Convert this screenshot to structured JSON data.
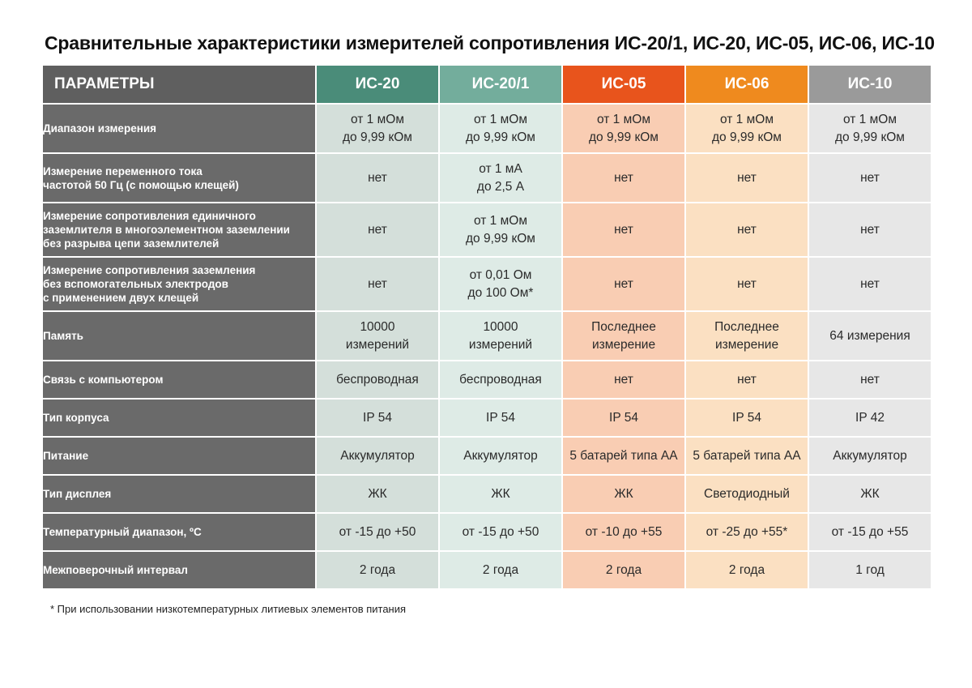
{
  "title": "Сравнительные характеристики измерителей сопротивления ИС-20/1, ИС-20, ИС-05, ИС-06, ИС-10",
  "header": {
    "param": "ПАРАМЕТРЫ",
    "columns": [
      {
        "label": "ИС-20",
        "header_color": "#4a8c79",
        "cell_color": "#d4dfda"
      },
      {
        "label": "ИС-20/1",
        "header_color": "#73ad9c",
        "cell_color": "#deebe6"
      },
      {
        "label": "ИС-05",
        "header_color": "#e8541c",
        "cell_color": "#f9cdb3"
      },
      {
        "label": "ИС-06",
        "header_color": "#ef8a1e",
        "cell_color": "#fbe0c2"
      },
      {
        "label": "ИС-10",
        "header_color": "#9a9a9a",
        "cell_color": "#e7e7e7"
      }
    ]
  },
  "rows": [
    {
      "param": "Диапазон измерения",
      "values": [
        "от 1 мОм\nдо 9,99 кОм",
        "от 1 мОм\nдо 9,99 кОм",
        "от 1 мОм\nдо 9,99 кОм",
        "от 1 мОм\nдо 9,99 кОм",
        "от 1 мОм\nдо 9,99 кОм"
      ]
    },
    {
      "param": "Измерение переменного тока\nчастотой 50 Гц (с помощью клещей)",
      "values": [
        "нет",
        "от 1 мА\nдо 2,5 А",
        "нет",
        "нет",
        "нет"
      ]
    },
    {
      "param": "Измерение сопротивления единичного\nзаземлителя в многоэлементном заземлении\nбез разрыва цепи заземлителей",
      "values": [
        "нет",
        "от 1 мОм\nдо 9,99 кОм",
        "нет",
        "нет",
        "нет"
      ]
    },
    {
      "param": "Измерение сопротивления заземления\nбез вспомогательных электродов\nс применением двух клещей",
      "values": [
        "нет",
        "от 0,01 Ом\nдо 100 Ом*",
        "нет",
        "нет",
        "нет"
      ]
    },
    {
      "param": "Память",
      "values": [
        "10000\nизмерений",
        "10000\nизмерений",
        "Последнее\nизмерение",
        "Последнее\nизмерение",
        "64 измерения"
      ]
    },
    {
      "param": "Связь с компьютером",
      "values": [
        "беспроводная",
        "беспроводная",
        "нет",
        "нет",
        "нет"
      ]
    },
    {
      "param": "Тип корпуса",
      "values": [
        "IP 54",
        "IP 54",
        "IP 54",
        "IP 54",
        "IP 42"
      ]
    },
    {
      "param": "Питание",
      "values": [
        "Аккумулятор",
        "Аккумулятор",
        "5 батарей типа АА",
        "5 батарей типа АА",
        "Аккумулятор"
      ]
    },
    {
      "param": "Тип дисплея",
      "values": [
        "ЖК",
        "ЖК",
        "ЖК",
        "Светодиодный",
        "ЖК"
      ]
    },
    {
      "param": "Температурный диапазон, ºС",
      "values": [
        "от -15 до +50",
        "от -15 до +50",
        "от -10 до +55",
        "от -25 до +55*",
        "от -15 до +55"
      ]
    },
    {
      "param": "Межповерочный интервал",
      "values": [
        "2 года",
        "2 года",
        "2 года",
        "2 года",
        "1 год"
      ]
    }
  ],
  "footnote": "* При использовании низкотемпературных литиевых элементов питания"
}
